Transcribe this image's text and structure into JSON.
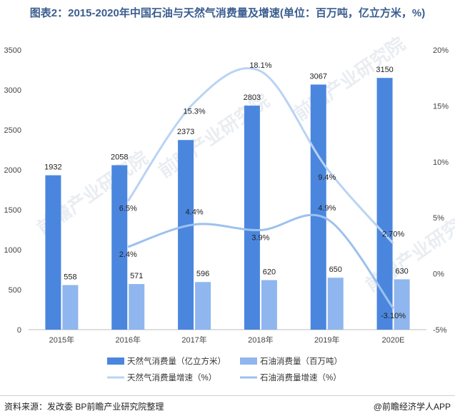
{
  "title": "图表2：2015-2020年中国石油与天然气消费量及增速(单位：百万吨，亿立方米，%)",
  "footer": {
    "source": "资料来源：发改委 BP前瞻产业研究院整理",
    "brand": "@前瞻经济学人APP"
  },
  "watermark_text": "前瞻产业研究院",
  "colors": {
    "gas_bar": "#4a86de",
    "oil_bar": "#8fb6ee",
    "gas_line": "#b9d3f4",
    "oil_line": "#9cc1ee",
    "axis": "#bdbdbd",
    "title": "#3a5d8f"
  },
  "chart_data": {
    "type": "bar",
    "categories": [
      "2015年",
      "2016年",
      "2017年",
      "2018年",
      "2019年",
      "2020E"
    ],
    "y_left": {
      "ticks": [
        "0",
        "500",
        "1000",
        "1500",
        "2000",
        "2500",
        "3000",
        "3500"
      ],
      "min": 0,
      "max": 3500
    },
    "y_right": {
      "ticks": [
        "-5%",
        "0%",
        "5%",
        "10%",
        "15%",
        "20%"
      ],
      "min": -5,
      "max": 20
    },
    "grid": false,
    "legend_position": "bottom",
    "series": [
      {
        "name": "天然气消费量（亿立方米）",
        "kind": "bar",
        "axis": "left",
        "values": [
          1932,
          2058,
          2373,
          2803,
          3067,
          3150
        ],
        "labels": [
          "1932",
          "2058",
          "2373",
          "2803",
          "3067",
          "3150"
        ]
      },
      {
        "name": "石油消费量（百万吨）",
        "kind": "bar",
        "axis": "left",
        "values": [
          558,
          571,
          596,
          620,
          650,
          630
        ],
        "labels": [
          "558",
          "571",
          "596",
          "620",
          "650",
          "630"
        ]
      },
      {
        "name": "天然气消费量增速（%）",
        "kind": "line",
        "axis": "right",
        "values": [
          null,
          6.5,
          15.3,
          18.1,
          9.4,
          2.7
        ],
        "labels": [
          "",
          "6.5%",
          "15.3%",
          "18.1%",
          "9.4%",
          "2.70%"
        ]
      },
      {
        "name": "石油消费量增速（%）",
        "kind": "line",
        "axis": "right",
        "values": [
          null,
          2.4,
          4.4,
          3.9,
          4.9,
          -3.1
        ],
        "labels": [
          "",
          "2.4%",
          "4.4%",
          "3.9%",
          "4.9%",
          "-3.10%"
        ]
      }
    ]
  }
}
